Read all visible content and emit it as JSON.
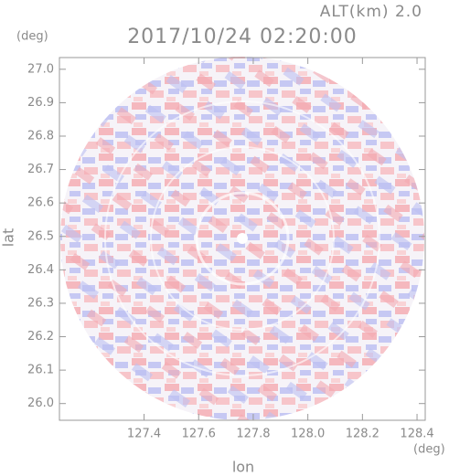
{
  "chart_data": {
    "type": "radar",
    "title": "2017/10/24 02:20:00",
    "subtitle": "ALT(km) 2.0",
    "x_label": "lon",
    "y_label": "lat",
    "x_unit": "(deg)",
    "y_unit": "(deg)",
    "xlim": [
      127.09,
      128.43
    ],
    "ylim": [
      25.95,
      27.035
    ],
    "xticks": [
      127.4,
      127.6,
      127.8,
      {
        "value": 128.0,
        "label": "128.0"
      },
      128.2,
      128.4
    ],
    "yticks": [
      {
        "value": 26.0,
        "label": "26.0"
      },
      26.1,
      26.2,
      26.3,
      26.4,
      26.5,
      26.6,
      26.7,
      26.8,
      26.9,
      {
        "value": 27.0,
        "label": "27.0"
      }
    ]
  }
}
